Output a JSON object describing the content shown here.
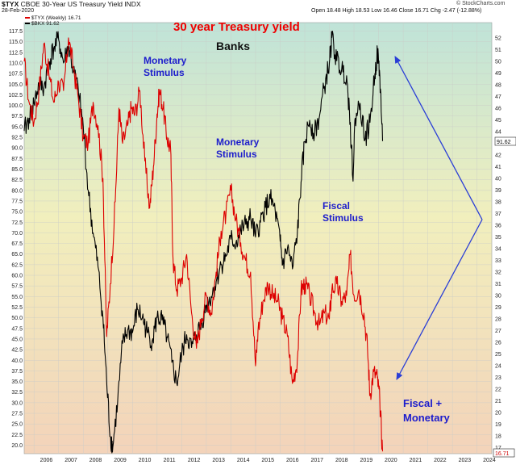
{
  "header": {
    "symbol": "$TYX",
    "name": "CBOE 30-Year US Treasury Yield INDX",
    "date": "28-Feb-2020",
    "quote": "Open 18.48  High 18.53  Low 16.46  Close 16.71  Chg -2.47 (-12.88%)",
    "watermark": "© StockCharts.com"
  },
  "legend": {
    "series1": "$TYX (Weekly) 16.71",
    "series2": "$BKX 91.62"
  },
  "price_tags": {
    "right_value": "91.62",
    "bottom_value": "16.71"
  },
  "annotations": {
    "title": "30 year Treasury yield",
    "banks": "Banks",
    "monetary1_line1": "Monetary",
    "monetary1_line2": "Stimulus",
    "monetary2_line1": "Monetary",
    "monetary2_line2": "Stimulus",
    "fiscal_line1": "Fiscal",
    "fiscal_line2": "Stimulus",
    "fm_line1": "Fiscal +",
    "fm_line2": "Monetary"
  },
  "colors": {
    "tyx": "#dd0000",
    "bkx": "#000000",
    "title": "#ee0000",
    "annotation": "#1d1dcc",
    "arrow": "#2a3ed6"
  },
  "chart_data": {
    "type": "line",
    "x_ticks": [
      "2006",
      "2007",
      "2008",
      "2009",
      "2010",
      "2011",
      "2012",
      "2013",
      "2014",
      "2015",
      "2016",
      "2017",
      "2018",
      "2019",
      "2020",
      "2021",
      "2022",
      "2023",
      "2024"
    ],
    "x_range": [
      2005.6,
      2024.6
    ],
    "left_axis": {
      "ticks": [
        20.0,
        22.5,
        25.0,
        27.5,
        30.0,
        32.5,
        35.0,
        37.5,
        40.0,
        42.5,
        45.0,
        47.5,
        50.0,
        52.5,
        55.0,
        57.5,
        60.0,
        62.5,
        65.0,
        67.5,
        70.0,
        72.5,
        75.0,
        77.5,
        80.0,
        82.5,
        85.0,
        87.5,
        90.0,
        92.5,
        95.0,
        97.5,
        100.0,
        102.5,
        105.0,
        107.5,
        110.0,
        112.5,
        115.0,
        117.5
      ],
      "range": [
        18.0,
        119.5
      ]
    },
    "right_axis": {
      "ticks": [
        17,
        18,
        19,
        20,
        21,
        22,
        23,
        24,
        25,
        26,
        27,
        28,
        29,
        30,
        31,
        32,
        33,
        34,
        35,
        36,
        37,
        38,
        39,
        40,
        41,
        42,
        43,
        44,
        45,
        46,
        47,
        48,
        49,
        50,
        51,
        52
      ],
      "range": [
        16.5,
        53.3
      ]
    },
    "series": [
      {
        "name": "$TYX (Weekly) 16.71",
        "axis": "right",
        "points": [
          [
            2005.6,
            50.0
          ],
          [
            2005.8,
            46.5
          ],
          [
            2006.0,
            44.8
          ],
          [
            2006.2,
            47.5
          ],
          [
            2006.4,
            51.5
          ],
          [
            2006.6,
            49.0
          ],
          [
            2006.8,
            46.5
          ],
          [
            2007.0,
            48.2
          ],
          [
            2007.2,
            47.5
          ],
          [
            2007.4,
            52.0
          ],
          [
            2007.6,
            49.5
          ],
          [
            2007.8,
            46.8
          ],
          [
            2008.0,
            43.5
          ],
          [
            2008.2,
            43.0
          ],
          [
            2008.4,
            46.5
          ],
          [
            2008.6,
            44.5
          ],
          [
            2008.8,
            40.0
          ],
          [
            2008.95,
            26.5
          ],
          [
            2009.1,
            31.0
          ],
          [
            2009.3,
            38.0
          ],
          [
            2009.45,
            46.0
          ],
          [
            2009.6,
            43.0
          ],
          [
            2009.8,
            44.5
          ],
          [
            2009.95,
            46.0
          ],
          [
            2010.1,
            45.5
          ],
          [
            2010.3,
            47.5
          ],
          [
            2010.5,
            41.5
          ],
          [
            2010.7,
            37.5
          ],
          [
            2010.85,
            41.0
          ],
          [
            2011.0,
            45.5
          ],
          [
            2011.1,
            47.5
          ],
          [
            2011.25,
            46.0
          ],
          [
            2011.4,
            43.5
          ],
          [
            2011.55,
            42.5
          ],
          [
            2011.65,
            33.0
          ],
          [
            2011.8,
            30.5
          ],
          [
            2012.0,
            31.5
          ],
          [
            2012.2,
            33.5
          ],
          [
            2012.4,
            28.5
          ],
          [
            2012.6,
            25.5
          ],
          [
            2012.8,
            28.0
          ],
          [
            2013.0,
            30.0
          ],
          [
            2013.2,
            28.5
          ],
          [
            2013.4,
            32.0
          ],
          [
            2013.6,
            35.5
          ],
          [
            2013.8,
            37.0
          ],
          [
            2014.0,
            39.0
          ],
          [
            2014.2,
            36.5
          ],
          [
            2014.4,
            34.5
          ],
          [
            2014.6,
            33.0
          ],
          [
            2014.8,
            32.0
          ],
          [
            2015.0,
            24.0
          ],
          [
            2015.1,
            27.0
          ],
          [
            2015.3,
            29.5
          ],
          [
            2015.5,
            31.0
          ],
          [
            2015.7,
            30.0
          ],
          [
            2015.9,
            29.5
          ],
          [
            2016.1,
            28.0
          ],
          [
            2016.3,
            26.5
          ],
          [
            2016.5,
            22.5
          ],
          [
            2016.7,
            24.5
          ],
          [
            2016.85,
            30.5
          ],
          [
            2017.0,
            31.0
          ],
          [
            2017.2,
            30.0
          ],
          [
            2017.4,
            28.5
          ],
          [
            2017.6,
            27.5
          ],
          [
            2017.8,
            28.5
          ],
          [
            2018.0,
            28.0
          ],
          [
            2018.1,
            30.5
          ],
          [
            2018.3,
            31.0
          ],
          [
            2018.5,
            29.5
          ],
          [
            2018.7,
            30.0
          ],
          [
            2018.85,
            33.5
          ],
          [
            2019.0,
            30.0
          ],
          [
            2019.2,
            30.5
          ],
          [
            2019.4,
            28.5
          ],
          [
            2019.55,
            25.5
          ],
          [
            2019.65,
            21.5
          ],
          [
            2019.8,
            23.5
          ],
          [
            2019.95,
            23.0
          ],
          [
            2020.05,
            21.0
          ],
          [
            2020.16,
            16.7
          ]
        ]
      },
      {
        "name": "$BKX 91.62",
        "axis": "left",
        "points": [
          [
            2005.6,
            94.0
          ],
          [
            2005.8,
            97.0
          ],
          [
            2006.0,
            100.5
          ],
          [
            2006.2,
            105.0
          ],
          [
            2006.4,
            104.0
          ],
          [
            2006.6,
            110.0
          ],
          [
            2006.8,
            113.5
          ],
          [
            2007.0,
            115.5
          ],
          [
            2007.2,
            110.0
          ],
          [
            2007.4,
            114.0
          ],
          [
            2007.6,
            108.0
          ],
          [
            2007.8,
            103.5
          ],
          [
            2008.0,
            95.0
          ],
          [
            2008.2,
            80.0
          ],
          [
            2008.4,
            70.0
          ],
          [
            2008.6,
            62.0
          ],
          [
            2008.8,
            50.0
          ],
          [
            2008.95,
            35.0
          ],
          [
            2009.1,
            22.0
          ],
          [
            2009.2,
            19.5
          ],
          [
            2009.4,
            30.5
          ],
          [
            2009.6,
            44.0
          ],
          [
            2009.8,
            47.0
          ],
          [
            2010.0,
            46.5
          ],
          [
            2010.2,
            52.0
          ],
          [
            2010.4,
            50.0
          ],
          [
            2010.6,
            46.5
          ],
          [
            2010.8,
            44.5
          ],
          [
            2011.0,
            50.0
          ],
          [
            2011.2,
            49.5
          ],
          [
            2011.4,
            45.5
          ],
          [
            2011.6,
            39.5
          ],
          [
            2011.8,
            34.5
          ],
          [
            2012.0,
            41.5
          ],
          [
            2012.2,
            46.0
          ],
          [
            2012.4,
            43.0
          ],
          [
            2012.6,
            46.0
          ],
          [
            2012.8,
            48.5
          ],
          [
            2013.0,
            53.0
          ],
          [
            2013.2,
            55.0
          ],
          [
            2013.4,
            58.5
          ],
          [
            2013.6,
            62.5
          ],
          [
            2013.8,
            64.5
          ],
          [
            2014.0,
            68.5
          ],
          [
            2014.2,
            67.5
          ],
          [
            2014.4,
            70.5
          ],
          [
            2014.6,
            72.0
          ],
          [
            2014.8,
            73.5
          ],
          [
            2015.0,
            69.0
          ],
          [
            2015.2,
            72.5
          ],
          [
            2015.4,
            76.0
          ],
          [
            2015.6,
            78.0
          ],
          [
            2015.8,
            75.0
          ],
          [
            2016.0,
            68.0
          ],
          [
            2016.1,
            62.5
          ],
          [
            2016.3,
            66.5
          ],
          [
            2016.5,
            61.5
          ],
          [
            2016.7,
            70.0
          ],
          [
            2016.85,
            82.0
          ],
          [
            2017.0,
            91.5
          ],
          [
            2017.2,
            96.5
          ],
          [
            2017.4,
            93.5
          ],
          [
            2017.6,
            97.5
          ],
          [
            2017.8,
            104.5
          ],
          [
            2018.0,
            110.0
          ],
          [
            2018.1,
            116.0
          ],
          [
            2018.3,
            110.5
          ],
          [
            2018.5,
            108.5
          ],
          [
            2018.7,
            107.0
          ],
          [
            2018.85,
            96.0
          ],
          [
            2018.95,
            83.0
          ],
          [
            2019.05,
            97.0
          ],
          [
            2019.25,
            100.5
          ],
          [
            2019.45,
            92.0
          ],
          [
            2019.65,
            96.0
          ],
          [
            2019.85,
            107.5
          ],
          [
            2019.95,
            112.5
          ],
          [
            2020.05,
            107.0
          ],
          [
            2020.16,
            91.6
          ]
        ]
      }
    ]
  }
}
